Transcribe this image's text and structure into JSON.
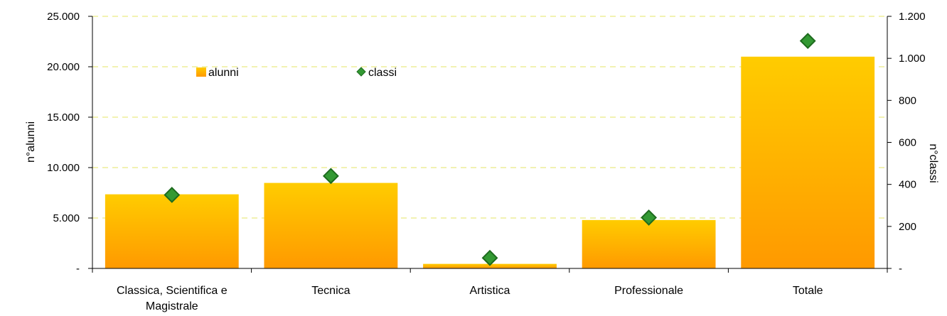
{
  "chart_data": {
    "type": "bar",
    "categories": [
      "Classica, Scientifica e Magistrale",
      "Tecnica",
      "Artistica",
      "Professionale",
      "Totale"
    ],
    "category_lines": [
      [
        "Classica, Scientifica e",
        "Magistrale"
      ],
      [
        "Tecnica"
      ],
      [
        "Artistica"
      ],
      [
        "Professionale"
      ],
      [
        "Totale"
      ]
    ],
    "series": [
      {
        "name": "alunni",
        "type": "bar",
        "axis": "left",
        "values": [
          7350,
          8480,
          450,
          4800,
          21000
        ]
      },
      {
        "name": "classi",
        "type": "scatter",
        "axis": "right",
        "values": [
          350,
          440,
          50,
          242,
          1083
        ]
      }
    ],
    "ylabel": "n°alunni",
    "y2label": "n°classi",
    "ylim": [
      0,
      25000
    ],
    "y2lim": [
      0,
      1200
    ],
    "yticks": [
      "-",
      "5.000",
      "10.000",
      "15.000",
      "20.000",
      "25.000"
    ],
    "y2ticks": [
      "-",
      "200",
      "400",
      "600",
      "800",
      "1.000",
      "1.200"
    ],
    "legend_position": "top-left inside",
    "grid": true,
    "colors": {
      "bar_top": "#FFCC00",
      "bar_bottom": "#FF9900",
      "marker_fill": "#339933",
      "marker_stroke": "#1E6B1E",
      "grid": "#EEEE99"
    }
  }
}
